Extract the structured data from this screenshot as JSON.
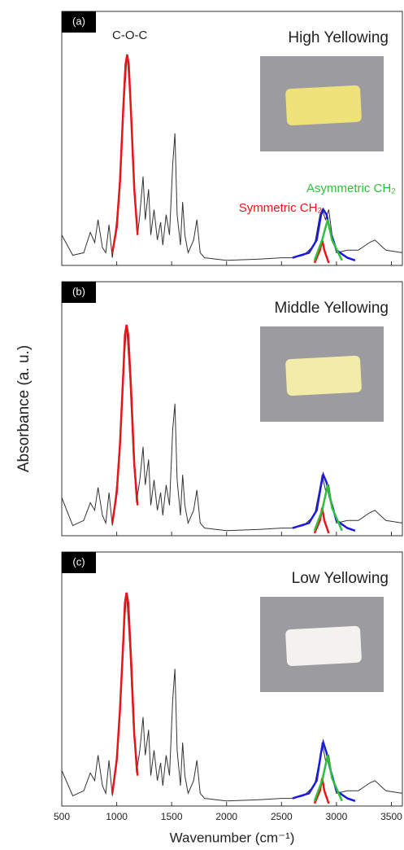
{
  "chart_data": [
    {
      "type": "line",
      "panel": "(a)",
      "title": "High Yellowing",
      "annotations": [
        "C-O-C",
        "Symmetric CH₂",
        "Asymmetric CH₂"
      ],
      "xlim": [
        500,
        3600
      ],
      "xticks": [
        500,
        1000,
        1500,
        2000,
        2500,
        3000,
        3500
      ],
      "ylim": [
        0,
        1
      ],
      "series": [
        {
          "color": "#333333",
          "x": [
            500,
            600,
            700,
            760,
            800,
            830,
            870,
            900,
            930,
            960,
            1000,
            1030,
            1060,
            1095,
            1130,
            1160,
            1190,
            1210,
            1240,
            1260,
            1290,
            1310,
            1340,
            1370,
            1400,
            1420,
            1450,
            1480,
            1510,
            1530,
            1550,
            1580,
            1600,
            1620,
            1650,
            1700,
            1730,
            1760,
            1800,
            2000,
            2300,
            2500,
            2600,
            2700,
            2800,
            2850,
            2870,
            2900,
            2930,
            2960,
            3000,
            3100,
            3200,
            3300,
            3350,
            3450,
            3600
          ],
          "values": [
            0.12,
            0.04,
            0.05,
            0.13,
            0.09,
            0.18,
            0.07,
            0.05,
            0.16,
            0.03,
            0.18,
            0.35,
            0.6,
            0.83,
            0.6,
            0.3,
            0.12,
            0.2,
            0.35,
            0.18,
            0.3,
            0.12,
            0.22,
            0.1,
            0.17,
            0.08,
            0.2,
            0.12,
            0.4,
            0.52,
            0.2,
            0.08,
            0.25,
            0.12,
            0.05,
            0.1,
            0.18,
            0.05,
            0.03,
            0.02,
            0.025,
            0.03,
            0.03,
            0.04,
            0.08,
            0.2,
            0.22,
            0.18,
            0.22,
            0.12,
            0.05,
            0.06,
            0.06,
            0.09,
            0.1,
            0.06,
            0.05
          ]
        },
        {
          "color": "#e8141a",
          "x": [
            960,
            1000,
            1030,
            1060,
            1080,
            1095,
            1110,
            1130,
            1160,
            1190
          ],
          "values": [
            0.05,
            0.15,
            0.33,
            0.62,
            0.79,
            0.83,
            0.79,
            0.6,
            0.3,
            0.12
          ]
        },
        {
          "color": "#1a1ae0",
          "x": [
            2600,
            2750,
            2820,
            2860,
            2880,
            2910,
            2940,
            3000,
            3100,
            3170
          ],
          "values": [
            0.03,
            0.05,
            0.1,
            0.2,
            0.22,
            0.2,
            0.14,
            0.06,
            0.03,
            0.02
          ]
        },
        {
          "color": "#e8141a",
          "x": [
            2800,
            2850,
            2870,
            2890,
            2930
          ],
          "values": [
            0.01,
            0.06,
            0.1,
            0.06,
            0.01
          ]
        },
        {
          "color": "#2fbf3a",
          "x": [
            2800,
            2870,
            2920,
            2960,
            3050
          ],
          "values": [
            0.02,
            0.1,
            0.18,
            0.1,
            0.02
          ]
        }
      ]
    },
    {
      "type": "line",
      "panel": "(b)",
      "title": "Middle Yellowing",
      "y_label": "Absorbance (a. u.)",
      "xlim": [
        500,
        3600
      ],
      "xticks": [
        500,
        1000,
        1500,
        2000,
        2500,
        3000,
        3500
      ],
      "ylim": [
        0,
        1
      ],
      "series": [
        {
          "color": "#333333",
          "x": [
            500,
            600,
            700,
            760,
            800,
            830,
            870,
            900,
            930,
            960,
            1000,
            1030,
            1060,
            1090,
            1120,
            1150,
            1180,
            1210,
            1240,
            1260,
            1290,
            1310,
            1340,
            1370,
            1400,
            1420,
            1450,
            1480,
            1510,
            1530,
            1550,
            1580,
            1600,
            1620,
            1650,
            1700,
            1730,
            1760,
            1800,
            2000,
            2300,
            2500,
            2600,
            2700,
            2800,
            2850,
            2870,
            2900,
            2930,
            2960,
            3000,
            3100,
            3200,
            3300,
            3350,
            3450,
            3600
          ],
          "values": [
            0.15,
            0.04,
            0.06,
            0.13,
            0.1,
            0.19,
            0.08,
            0.05,
            0.17,
            0.04,
            0.2,
            0.38,
            0.63,
            0.83,
            0.62,
            0.32,
            0.13,
            0.22,
            0.35,
            0.2,
            0.3,
            0.12,
            0.22,
            0.1,
            0.17,
            0.08,
            0.2,
            0.12,
            0.42,
            0.52,
            0.22,
            0.08,
            0.24,
            0.12,
            0.05,
            0.1,
            0.18,
            0.05,
            0.03,
            0.02,
            0.025,
            0.03,
            0.03,
            0.04,
            0.08,
            0.19,
            0.24,
            0.18,
            0.2,
            0.12,
            0.05,
            0.06,
            0.06,
            0.09,
            0.1,
            0.06,
            0.05
          ]
        },
        {
          "color": "#e8141a",
          "x": [
            960,
            1000,
            1030,
            1060,
            1075,
            1090,
            1105,
            1130,
            1160,
            1190
          ],
          "values": [
            0.05,
            0.17,
            0.36,
            0.64,
            0.79,
            0.83,
            0.79,
            0.58,
            0.28,
            0.12
          ]
        },
        {
          "color": "#1a1ae0",
          "x": [
            2600,
            2750,
            2820,
            2860,
            2880,
            2910,
            2940,
            3000,
            3100,
            3170
          ],
          "values": [
            0.03,
            0.05,
            0.1,
            0.2,
            0.24,
            0.21,
            0.15,
            0.06,
            0.03,
            0.02
          ]
        },
        {
          "color": "#e8141a",
          "x": [
            2800,
            2850,
            2870,
            2890,
            2930
          ],
          "values": [
            0.01,
            0.06,
            0.11,
            0.06,
            0.01
          ]
        },
        {
          "color": "#2fbf3a",
          "x": [
            2800,
            2870,
            2920,
            2960,
            3050
          ],
          "values": [
            0.02,
            0.1,
            0.2,
            0.11,
            0.02
          ]
        }
      ]
    },
    {
      "type": "line",
      "panel": "(c)",
      "title": "Low Yellowing",
      "x_label": "Wavenumber (cm⁻¹)",
      "xlim": [
        500,
        3600
      ],
      "xticks": [
        500,
        1000,
        1500,
        2000,
        2500,
        3000,
        3500
      ],
      "ylim": [
        0,
        1
      ],
      "series": [
        {
          "color": "#333333",
          "x": [
            500,
            600,
            700,
            760,
            800,
            830,
            870,
            900,
            930,
            960,
            1000,
            1030,
            1060,
            1090,
            1120,
            1150,
            1180,
            1210,
            1240,
            1260,
            1290,
            1310,
            1340,
            1370,
            1400,
            1420,
            1450,
            1480,
            1510,
            1530,
            1550,
            1580,
            1600,
            1620,
            1650,
            1700,
            1730,
            1760,
            1800,
            2000,
            2300,
            2500,
            2600,
            2700,
            2800,
            2850,
            2870,
            2900,
            2930,
            2960,
            3000,
            3100,
            3200,
            3300,
            3350,
            3450,
            3600
          ],
          "values": [
            0.14,
            0.04,
            0.06,
            0.13,
            0.1,
            0.2,
            0.08,
            0.05,
            0.18,
            0.04,
            0.2,
            0.4,
            0.64,
            0.84,
            0.62,
            0.32,
            0.13,
            0.22,
            0.35,
            0.2,
            0.3,
            0.12,
            0.22,
            0.1,
            0.17,
            0.08,
            0.2,
            0.12,
            0.42,
            0.54,
            0.22,
            0.08,
            0.25,
            0.12,
            0.05,
            0.1,
            0.18,
            0.05,
            0.03,
            0.02,
            0.025,
            0.03,
            0.03,
            0.04,
            0.08,
            0.19,
            0.25,
            0.18,
            0.2,
            0.12,
            0.05,
            0.06,
            0.06,
            0.09,
            0.1,
            0.06,
            0.05
          ]
        },
        {
          "color": "#e8141a",
          "x": [
            960,
            1000,
            1030,
            1060,
            1075,
            1090,
            1105,
            1130,
            1160,
            1190
          ],
          "values": [
            0.05,
            0.18,
            0.38,
            0.65,
            0.8,
            0.84,
            0.8,
            0.58,
            0.28,
            0.12
          ]
        },
        {
          "color": "#1a1ae0",
          "x": [
            2600,
            2750,
            2820,
            2860,
            2880,
            2910,
            2940,
            3000,
            3100,
            3170
          ],
          "values": [
            0.03,
            0.05,
            0.1,
            0.21,
            0.25,
            0.21,
            0.15,
            0.06,
            0.03,
            0.02
          ]
        },
        {
          "color": "#e8141a",
          "x": [
            2800,
            2850,
            2870,
            2890,
            2930
          ],
          "values": [
            0.01,
            0.06,
            0.11,
            0.06,
            0.01
          ]
        },
        {
          "color": "#2fbf3a",
          "x": [
            2800,
            2870,
            2920,
            2960,
            3050
          ],
          "values": [
            0.02,
            0.1,
            0.2,
            0.11,
            0.02
          ]
        }
      ]
    }
  ]
}
